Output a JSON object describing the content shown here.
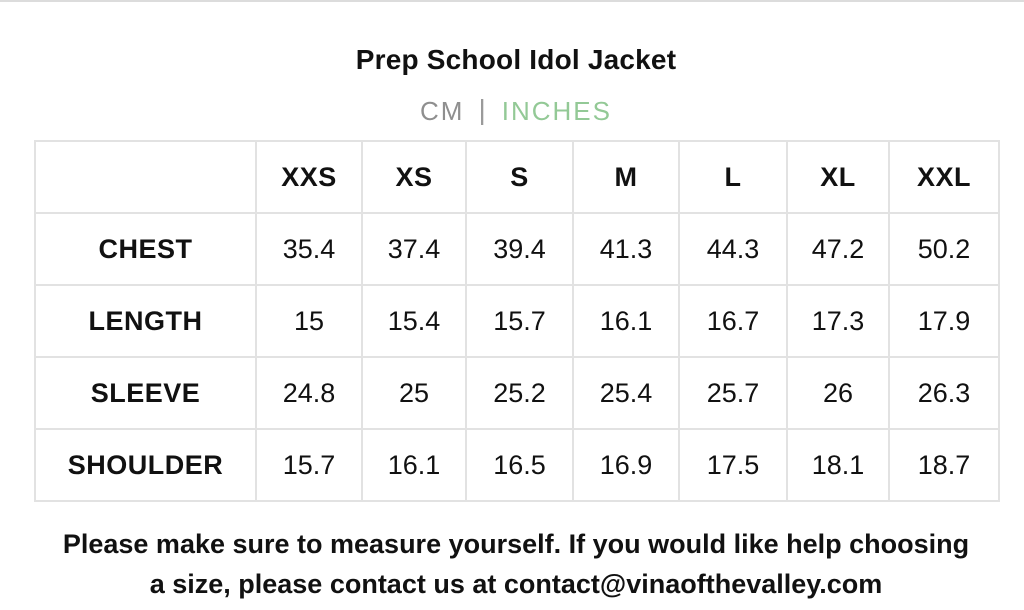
{
  "title": "Prep School Idol Jacket",
  "units": {
    "cm_label": "CM",
    "separator": "|",
    "inches_label": "INCHES",
    "selected": "INCHES",
    "selected_color": "#93c996",
    "unselected_color": "#8f8f8f"
  },
  "table": {
    "corner": "",
    "columns": [
      "XXS",
      "XS",
      "S",
      "M",
      "L",
      "XL",
      "XXL"
    ],
    "rows": [
      {
        "label": "CHEST",
        "values": [
          "35.4",
          "37.4",
          "39.4",
          "41.3",
          "44.3",
          "47.2",
          "50.2"
        ]
      },
      {
        "label": "LENGTH",
        "values": [
          "15",
          "15.4",
          "15.7",
          "16.1",
          "16.7",
          "17.3",
          "17.9"
        ]
      },
      {
        "label": "SLEEVE",
        "values": [
          "24.8",
          "25",
          "25.2",
          "25.4",
          "25.7",
          "26",
          "26.3"
        ]
      },
      {
        "label": "SHOULDER",
        "values": [
          "15.7",
          "16.1",
          "16.5",
          "16.9",
          "17.5",
          "18.1",
          "18.7"
        ]
      }
    ]
  },
  "note": {
    "line1": "Please make sure to measure yourself. If you would like help choosing",
    "line2": "a size, please contact us at contact@vinaofthevalley.com"
  }
}
